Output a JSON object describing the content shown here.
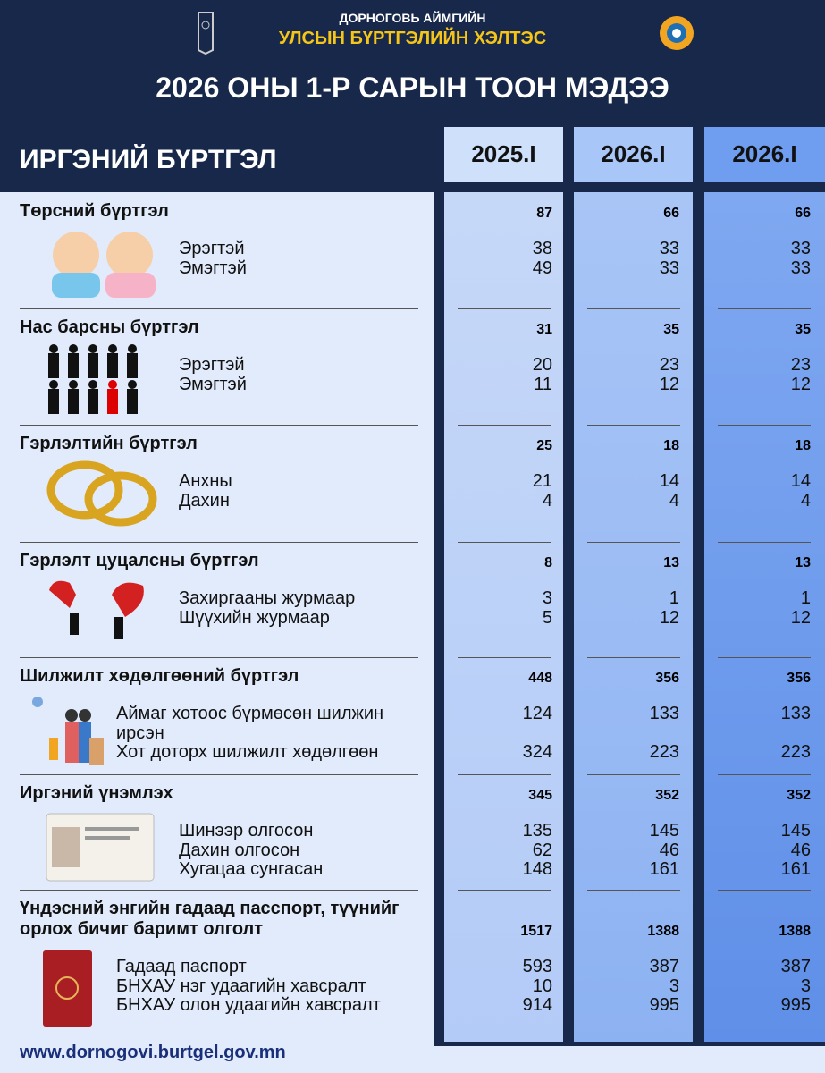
{
  "header": {
    "org_line1": "ДОРНОГОВЬ АЙМГИЙН",
    "org_line2": "УЛСЫН БҮРТГЭЛИЙН ХЭЛТЭС",
    "title": "2026 ОНЫ 1-Р САРЫН ТООН МЭДЭЭ"
  },
  "table": {
    "heading": "ИРГЭНИЙ БҮРТГЭЛ",
    "columns": [
      "2025.I",
      "2026.I",
      "2026.I"
    ],
    "sections": [
      {
        "title": "Төрсний бүртгэл",
        "values": [
          87,
          66,
          66
        ],
        "rows": [
          {
            "label": "Эрэгтэй",
            "values": [
              38,
              33,
              33
            ]
          },
          {
            "label": "Эмэгтэй",
            "values": [
              49,
              33,
              33
            ]
          }
        ]
      },
      {
        "title": "Нас барсны бүртгэл",
        "values": [
          31,
          35,
          35
        ],
        "rows": [
          {
            "label": "Эрэгтэй",
            "values": [
              20,
              23,
              23
            ]
          },
          {
            "label": "Эмэгтэй",
            "values": [
              11,
              12,
              12
            ]
          }
        ]
      },
      {
        "title": "Гэрлэлтийн бүртгэл",
        "values": [
          25,
          18,
          18
        ],
        "rows": [
          {
            "label": "Анхны",
            "values": [
              21,
              14,
              14
            ]
          },
          {
            "label": "Дахин",
            "values": [
              4,
              4,
              4
            ]
          }
        ]
      },
      {
        "title": "Гэрлэлт цуцалсны бүртгэл",
        "values": [
          8,
          13,
          13
        ],
        "rows": [
          {
            "label": "Захиргааны журмаар",
            "values": [
              3,
              1,
              1
            ]
          },
          {
            "label": "Шүүхийн журмаар",
            "values": [
              5,
              12,
              12
            ]
          }
        ]
      },
      {
        "title": "Шилжилт хөдөлгөөний бүртгэл",
        "values": [
          448,
          356,
          356
        ],
        "rows": [
          {
            "label": "Аймаг хотоос бүрмөсөн шилжин ирсэн",
            "values": [
              124,
              133,
              133
            ]
          },
          {
            "label": "Хот доторх шилжилт хөдөлгөөн",
            "values": [
              324,
              223,
              223
            ]
          }
        ]
      },
      {
        "title": "Иргэний үнэмлэх",
        "values": [
          345,
          352,
          352
        ],
        "rows": [
          {
            "label": "Шинээр олгосон",
            "values": [
              135,
              145,
              145
            ]
          },
          {
            "label": "Дахин олгосон",
            "values": [
              62,
              46,
              46
            ]
          },
          {
            "label": "Хугацаа сунгасан",
            "values": [
              148,
              161,
              161
            ]
          }
        ]
      },
      {
        "title": "Үндэсний энгийн гадаад пасспорт, түүнийг орлох бичиг баримт олголт",
        "values": [
          1517,
          1388,
          1388
        ],
        "rows": [
          {
            "label": "Гадаад паспорт",
            "values": [
              593,
              387,
              387
            ]
          },
          {
            "label": "БНХАУ нэг удаагийн хавсралт",
            "values": [
              10,
              3,
              3
            ]
          },
          {
            "label": "БНХАУ олон удаагийн хавсралт",
            "values": [
              914,
              995,
              995
            ]
          }
        ]
      }
    ]
  },
  "footer": {
    "url": "www.dornogovi.burtgel.gov.mn"
  }
}
